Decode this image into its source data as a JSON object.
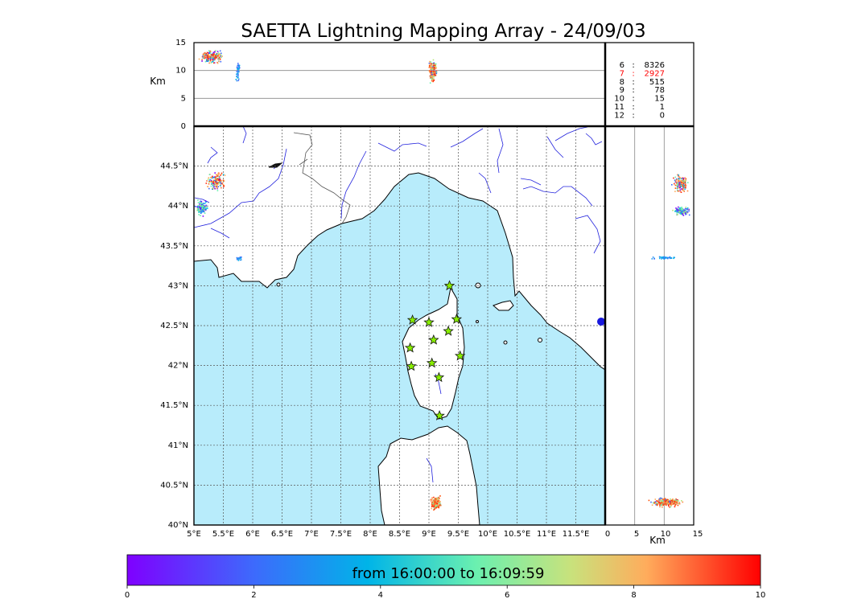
{
  "title": "SAETTA Lightning Mapping Array - 24/09/03",
  "alt_unit_label": "Km",
  "alt_ticks": [
    "0",
    "5",
    "10",
    "15"
  ],
  "lon_ticks": [
    "5°E",
    "5.5°E",
    "6°E",
    "6.5°E",
    "7°E",
    "7.5°E",
    "8°E",
    "8.5°E",
    "9°E",
    "9.5°E",
    "10°E",
    "10.5°E",
    "11°E",
    "11.5°E"
  ],
  "lat_ticks": [
    "40°N",
    "40.5°N",
    "41°N",
    "41.5°N",
    "42°N",
    "42.5°N",
    "43°N",
    "43.5°N",
    "44°N",
    "44.5°N"
  ],
  "right_km_ticks": [
    "0",
    "5",
    "10",
    "15"
  ],
  "right_km_label": "Km",
  "stats": [
    {
      "key": "6",
      "sep": ":",
      "value": "8326",
      "color": "#000000"
    },
    {
      "key": "7",
      "sep": ":",
      "value": "2927",
      "color": "#ff0000"
    },
    {
      "key": "8",
      "sep": ":",
      "value": "515",
      "color": "#000000"
    },
    {
      "key": "9",
      "sep": ":",
      "value": "78",
      "color": "#000000"
    },
    {
      "key": "10",
      "sep": ":",
      "value": "15",
      "color": "#000000"
    },
    {
      "key": "11",
      "sep": ":",
      "value": "1",
      "color": "#000000"
    },
    {
      "key": "12",
      "sep": ":",
      "value": "0",
      "color": "#000000"
    }
  ],
  "colorbar": {
    "text": "from 16:00:00 to 16:09:59",
    "ticks": [
      "0",
      "2",
      "4",
      "6",
      "8",
      "10"
    ]
  },
  "colors": {
    "sea": "#b8ecfb",
    "river": "#2222dd",
    "station": "#88ee00"
  }
}
